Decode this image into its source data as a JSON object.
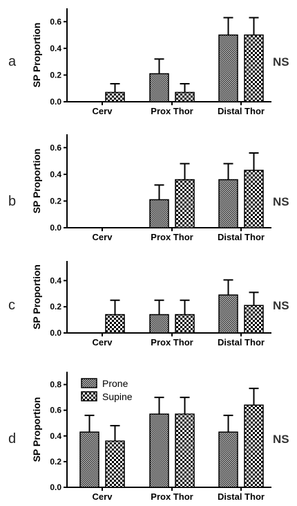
{
  "chart_data": [
    {
      "panel_label": "a",
      "type": "bar",
      "categories": [
        "Cerv",
        "Prox Thor",
        "Distal Thor"
      ],
      "ylabel": "SP Proportion",
      "ylim": [
        0,
        0.7
      ],
      "yticks": [
        0.0,
        0.2,
        0.4,
        0.6
      ],
      "tick_labels": [
        "0.0",
        "0.2",
        "0.4",
        "0.6"
      ],
      "annotation": "NS",
      "series": [
        {
          "name": "Prone",
          "values": [
            0.0,
            0.21,
            0.5
          ],
          "errors": [
            0.0,
            0.11,
            0.13
          ]
        },
        {
          "name": "Supine",
          "values": [
            0.07,
            0.07,
            0.5
          ],
          "errors": [
            0.065,
            0.065,
            0.13
          ]
        }
      ]
    },
    {
      "panel_label": "b",
      "type": "bar",
      "categories": [
        "Cerv",
        "Prox Thor",
        "Distal Thor"
      ],
      "ylabel": "SP Proportion",
      "ylim": [
        0,
        0.7
      ],
      "yticks": [
        0.0,
        0.2,
        0.4,
        0.6
      ],
      "tick_labels": [
        "0.0",
        "0.2",
        "0.4",
        "0.6"
      ],
      "annotation": "NS",
      "series": [
        {
          "name": "Prone",
          "values": [
            0.0,
            0.21,
            0.36
          ],
          "errors": [
            0.0,
            0.11,
            0.12
          ]
        },
        {
          "name": "Supine",
          "values": [
            0.0,
            0.36,
            0.43
          ],
          "errors": [
            0.0,
            0.12,
            0.13
          ]
        }
      ]
    },
    {
      "panel_label": "c",
      "type": "bar",
      "categories": [
        "Cerv",
        "Prox Thor",
        "Distal Thor"
      ],
      "ylabel": "SP Proportion",
      "ylim": [
        0,
        0.55
      ],
      "yticks": [
        0.0,
        0.2,
        0.4
      ],
      "tick_labels": [
        "0.0",
        "0.2",
        "0.4"
      ],
      "annotation": "NS",
      "series": [
        {
          "name": "Prone",
          "values": [
            0.0,
            0.14,
            0.29
          ],
          "errors": [
            0.0,
            0.11,
            0.115
          ]
        },
        {
          "name": "Supine",
          "values": [
            0.14,
            0.14,
            0.21
          ],
          "errors": [
            0.11,
            0.11,
            0.1
          ]
        }
      ]
    },
    {
      "panel_label": "d",
      "type": "bar",
      "categories": [
        "Cerv",
        "Prox Thor",
        "Distal Thor"
      ],
      "ylabel": "SP Proportion",
      "ylim": [
        0,
        0.9
      ],
      "yticks": [
        0.0,
        0.2,
        0.4,
        0.6,
        0.8
      ],
      "tick_labels": [
        "0.0",
        "0.2",
        "0.4",
        "0.6",
        "0.8"
      ],
      "annotation": "NS",
      "legend": {
        "placement": "top-left",
        "entries": [
          "Prone",
          "Supine"
        ]
      },
      "series": [
        {
          "name": "Prone",
          "values": [
            0.43,
            0.57,
            0.43
          ],
          "errors": [
            0.13,
            0.13,
            0.13
          ]
        },
        {
          "name": "Supine",
          "values": [
            0.36,
            0.57,
            0.64
          ],
          "errors": [
            0.12,
            0.13,
            0.13
          ]
        }
      ]
    }
  ],
  "colors": {
    "axis": "#000000",
    "prone_pattern": "fine-checker",
    "supine_pattern": "coarse-checker"
  }
}
